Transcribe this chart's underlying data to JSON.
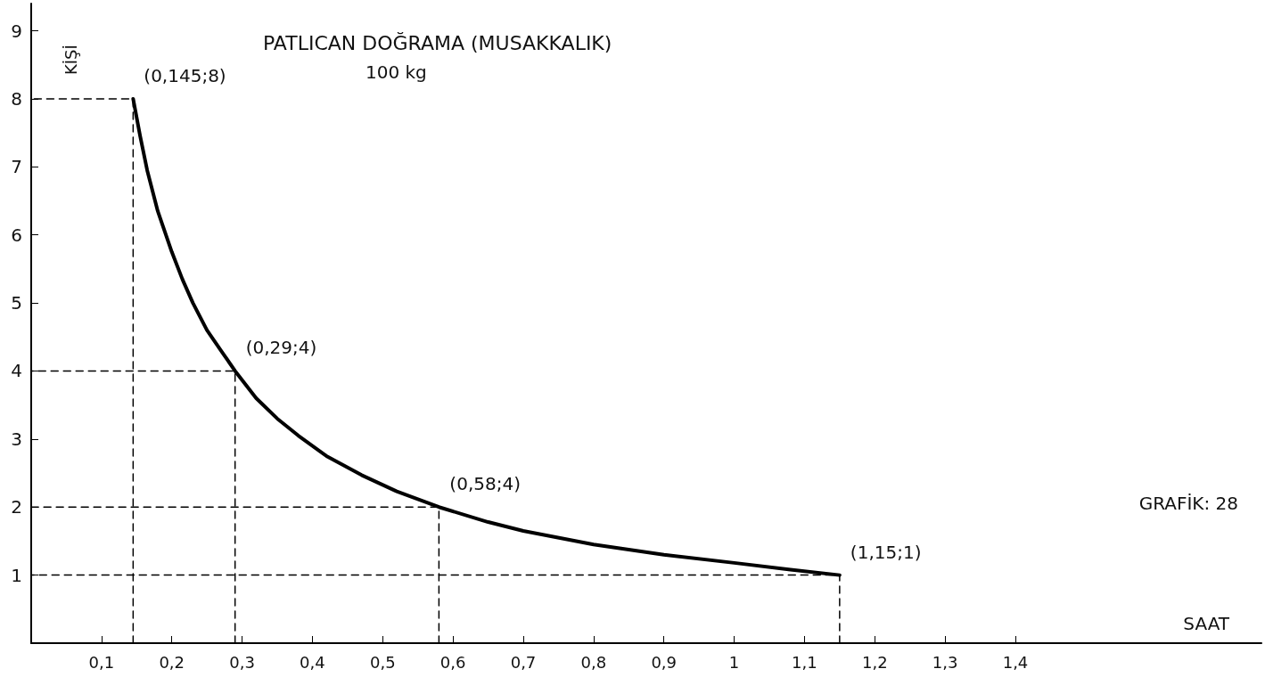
{
  "chart_data": {
    "type": "line",
    "title": "PATLICAN DOĞRAMA (MUSAKKALIK)",
    "subtitle": "100 kg",
    "xlabel": "SAAT",
    "ylabel": "KİŞİ",
    "x": [
      0.145,
      0.155,
      0.165,
      0.18,
      0.2,
      0.215,
      0.23,
      0.25,
      0.27,
      0.29,
      0.32,
      0.35,
      0.38,
      0.42,
      0.47,
      0.52,
      0.58,
      0.65,
      0.7,
      0.8,
      0.9,
      1.0,
      1.08,
      1.15
    ],
    "series": [
      {
        "color": "#000000",
        "values": [
          8,
          7.45,
          6.95,
          6.35,
          5.75,
          5.35,
          5.0,
          4.6,
          4.3,
          4,
          3.6,
          3.3,
          3.05,
          2.75,
          2.47,
          2.23,
          2,
          1.78,
          1.65,
          1.45,
          1.3,
          1.18,
          1.08,
          1
        ]
      },
      {
        "color": "#000000",
        "line_style": "dashed",
        "x": [
          0.145,
          0.145,
          0
        ],
        "values": [
          0,
          8,
          8
        ]
      },
      {
        "color": "#000000",
        "line_style": "dashed",
        "x": [
          0.29,
          0.29,
          0
        ],
        "values": [
          0,
          4,
          4
        ]
      },
      {
        "color": "#000000",
        "line_style": "dashed",
        "x": [
          0.58,
          0.58,
          0
        ],
        "values": [
          0,
          2,
          2
        ]
      },
      {
        "color": "#000000",
        "line_style": "dashed",
        "x": [
          1.15,
          1.15,
          0
        ],
        "values": [
          0,
          1,
          1
        ]
      }
    ],
    "xlim": [
      0,
      1.75
    ],
    "ylim": [
      0,
      9.4
    ],
    "xticks": [
      {
        "value": 0.1,
        "label": "0,1"
      },
      {
        "value": 0.2,
        "label": "0,2"
      },
      {
        "value": 0.3,
        "label": "0,3"
      },
      {
        "value": 0.4,
        "label": "0,4"
      },
      {
        "value": 0.5,
        "label": "0,5"
      },
      {
        "value": 0.6,
        "label": "0,6"
      },
      {
        "value": 0.7,
        "label": "0,7"
      },
      {
        "value": 0.8,
        "label": "0,8"
      },
      {
        "value": 0.9,
        "label": "0,9"
      },
      {
        "value": 1,
        "label": "1"
      },
      {
        "value": 1.1,
        "label": "1,1"
      },
      {
        "value": 1.2,
        "label": "1,2"
      },
      {
        "value": 1.3,
        "label": "1,3"
      },
      {
        "value": 1.4,
        "label": "1,4"
      }
    ],
    "yticks": [
      1,
      2,
      3,
      4,
      5,
      6,
      7,
      8,
      9
    ],
    "annotations": [
      {
        "text": "(0,145;8)",
        "x": 0.145,
        "y": 8
      },
      {
        "text": "(0,29;4)",
        "x": 0.29,
        "y": 4
      },
      {
        "text": "(0,58;4)",
        "x": 0.58,
        "y": 2
      },
      {
        "text": "(1,15;1)",
        "x": 1.15,
        "y": 1
      },
      "GRAFİK: 28"
    ],
    "grid": false,
    "marker": "none",
    "line_style": "solid"
  }
}
